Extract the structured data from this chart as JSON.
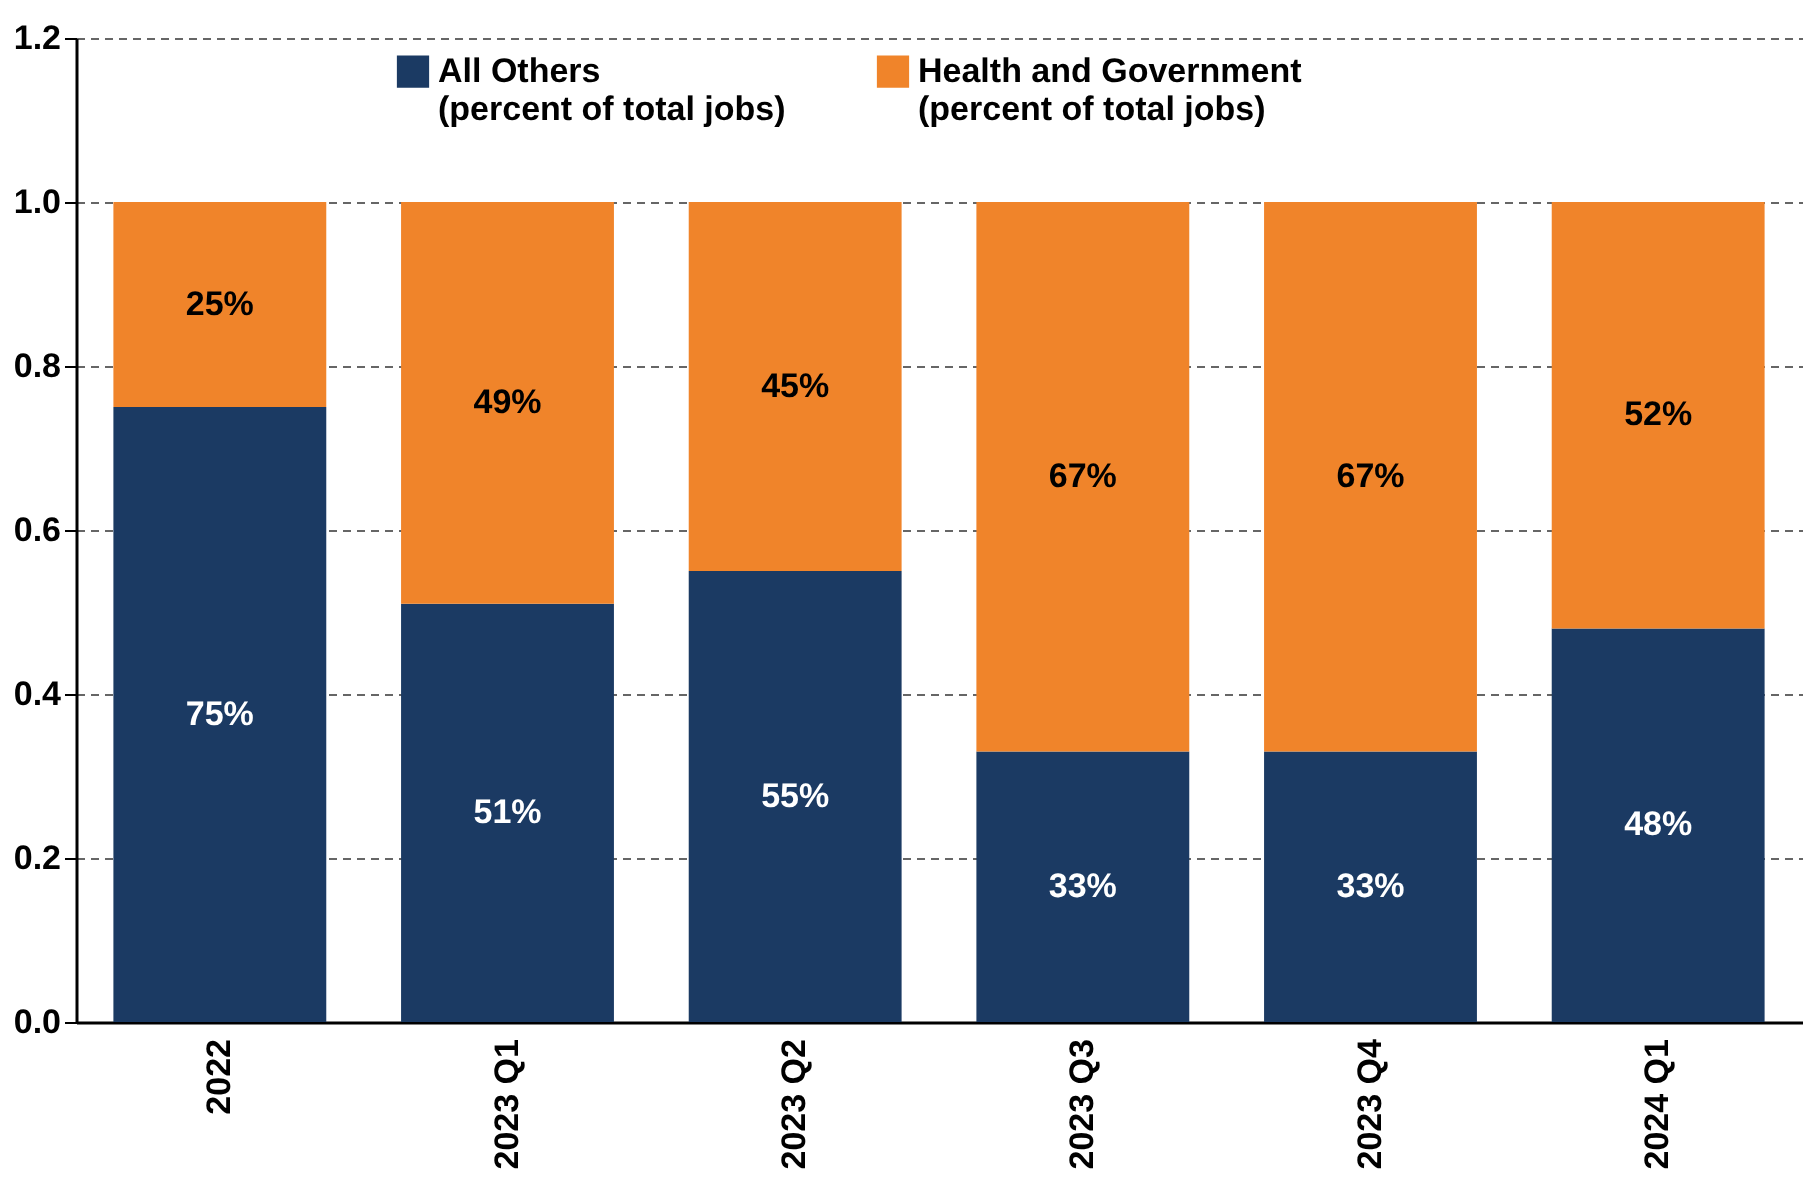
{
  "chart_data": {
    "type": "bar",
    "stacked": true,
    "categories": [
      "2022",
      "2023 Q1",
      "2023 Q2",
      "2023 Q3",
      "2023 Q4",
      "2024 Q1"
    ],
    "series": [
      {
        "name": "All Others\n(percent of total jobs)",
        "color": "#1b3a63",
        "values": [
          0.75,
          0.51,
          0.55,
          0.33,
          0.33,
          0.48
        ],
        "value_labels": [
          "75%",
          "51%",
          "55%",
          "33%",
          "33%",
          "48%"
        ]
      },
      {
        "name": "Health and Government\n(percent of total jobs)",
        "color": "#f0842a",
        "values": [
          0.25,
          0.49,
          0.45,
          0.67,
          0.67,
          0.52
        ],
        "value_labels": [
          "25%",
          "49%",
          "45%",
          "67%",
          "67%",
          "52%"
        ]
      }
    ],
    "ylim": [
      0,
      1.2
    ],
    "yticks": [
      {
        "value": 0,
        "label": "0.0"
      },
      {
        "value": 0.2,
        "label": "0.2"
      },
      {
        "value": 0.4,
        "label": "0.4"
      },
      {
        "value": 0.6,
        "label": "0.6"
      },
      {
        "value": 0.8,
        "label": "0.8"
      },
      {
        "value": 1,
        "label": "1.0"
      },
      {
        "value": 1.2,
        "label": "1.2"
      }
    ],
    "grid": "y",
    "legend": "top"
  }
}
